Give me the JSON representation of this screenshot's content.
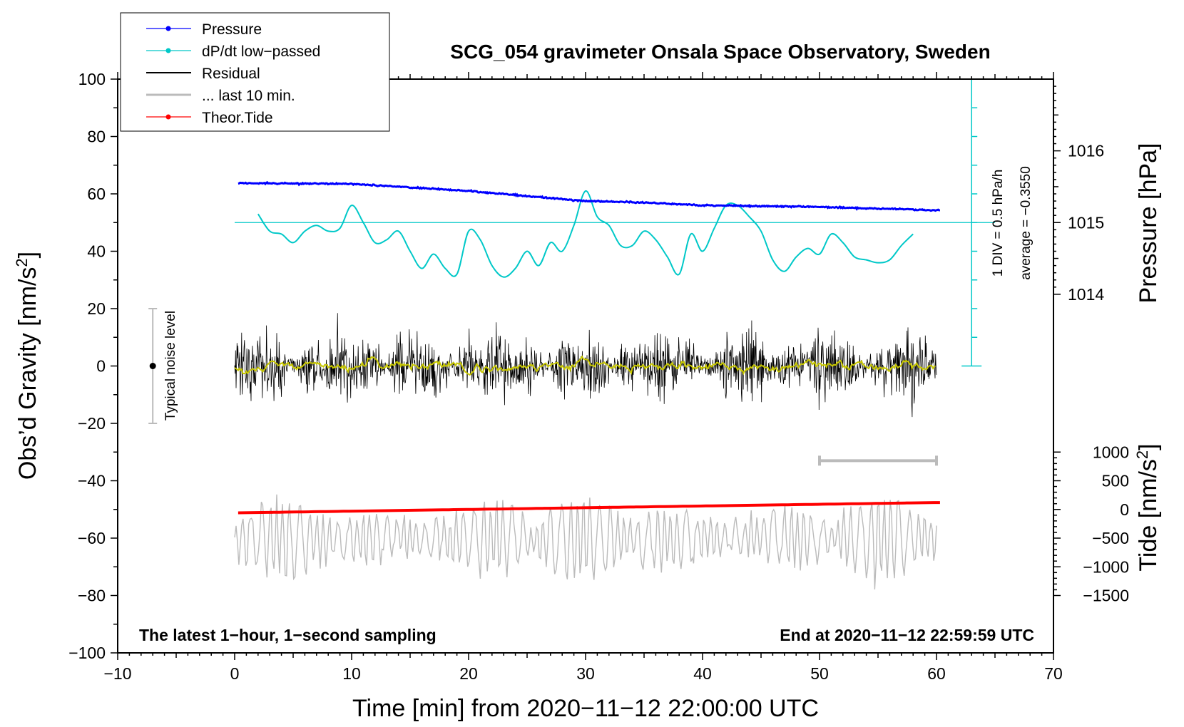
{
  "chart_data": {
    "type": "line",
    "title": "SCG_054 gravimeter Onsala Space Observatory, Sweden",
    "xlabel": "Time [min] from 2020−11−12 22:00:00 UTC",
    "ylabel": "Obs’d Gravity [nm/s",
    "ylabel_sup": "2",
    "ylabel_close": "]",
    "y2label_pressure": "Pressure [hPa]",
    "y2label_tide": "Tide [nm/s",
    "y2label_tide_sup": "2",
    "y2label_tide_close": "]",
    "xlim": [
      -10,
      70
    ],
    "ylim": [
      -100,
      100
    ],
    "x_ticks": [
      "−10",
      "0",
      "10",
      "20",
      "30",
      "40",
      "50",
      "60",
      "70"
    ],
    "x_tick_values": [
      -10,
      0,
      10,
      20,
      30,
      40,
      50,
      60,
      70
    ],
    "y_ticks": [
      "100",
      "80",
      "60",
      "40",
      "20",
      "0",
      "−20",
      "−40",
      "−60",
      "−80",
      "−100"
    ],
    "y_tick_values": [
      100,
      80,
      60,
      40,
      20,
      0,
      -20,
      -40,
      -60,
      -80,
      -100
    ],
    "pressure_axis": {
      "ticks": [
        "1016",
        "1015",
        "1014"
      ],
      "tick_values": [
        1016,
        1015,
        1014
      ],
      "ref_hpa": 1015,
      "ref_gravity": 50,
      "gravity_per_hpa": 25
    },
    "tide_axis": {
      "ticks": [
        "1000",
        "500",
        "0",
        "−500",
        "−1000",
        "−1500"
      ],
      "tick_values": [
        1000,
        500,
        0,
        -500,
        -1000,
        -1500
      ],
      "ref_tide": 0,
      "ref_gravity": -50,
      "gravity_per_nms2": 0.02
    },
    "legend": {
      "position": "top-left",
      "entries": [
        {
          "label": "Pressure",
          "color": "#0000ff",
          "marker": true
        },
        {
          "label": "dP/dt low−passed",
          "color": "#00c8c8",
          "marker": true
        },
        {
          "label": "Residual",
          "color": "#000000",
          "marker": false
        },
        {
          "label": "... last 10 min.",
          "color": "#bbbbbb",
          "marker": false
        },
        {
          "label": "Theor.Tide",
          "color": "#ff0000",
          "marker": true
        }
      ]
    },
    "series": [
      {
        "name": "Pressure",
        "color": "#0000ff",
        "unit": "hPa",
        "x": [
          0,
          10,
          20,
          30,
          35,
          40,
          50,
          60
        ],
        "values": [
          1015.55,
          1015.54,
          1015.44,
          1015.3,
          1015.28,
          1015.24,
          1015.22,
          1015.17
        ]
      },
      {
        "name": "dP/dt low−passed",
        "color": "#00c8c8",
        "unit": "gravity",
        "x": [
          2,
          3,
          4,
          5,
          6,
          7,
          8,
          9,
          10,
          11,
          12,
          13,
          14,
          15,
          16,
          17,
          18,
          19,
          20,
          21,
          22,
          23,
          24,
          25,
          26,
          27,
          28,
          29,
          30,
          31,
          32,
          33,
          34,
          35,
          36,
          37,
          38,
          39,
          40,
          41,
          42,
          43,
          44,
          45,
          46,
          47,
          48,
          49,
          50,
          51,
          52,
          53,
          54,
          55,
          56,
          57,
          58
        ],
        "values": [
          53,
          47,
          46,
          43,
          47,
          49,
          47,
          48,
          56,
          50,
          43,
          44,
          47,
          40,
          34,
          39,
          34,
          32,
          47,
          44,
          35,
          31,
          34,
          40,
          35,
          43,
          40,
          49,
          61,
          52,
          49,
          42,
          42,
          47,
          44,
          38,
          32,
          46,
          40,
          48,
          56,
          56,
          52,
          47,
          37,
          33,
          38,
          41,
          39,
          46,
          43,
          38,
          37,
          36,
          37,
          42,
          46
        ]
      },
      {
        "name": "Residual",
        "color": "#000000",
        "unit": "gravity",
        "x": [
          0,
          60
        ],
        "values": [
          0,
          0
        ],
        "note": "1-second sampling noise, amplitude about ±20"
      },
      {
        "name": "Residual smoothed",
        "color": "#c8c800",
        "unit": "gravity",
        "x": [
          0,
          60
        ],
        "values": [
          0,
          0
        ]
      },
      {
        "name": "... last 10 min.",
        "color": "#bbbbbb",
        "unit": "gravity",
        "x": [
          0,
          60
        ],
        "values": [
          -60,
          -60
        ],
        "note": "last 10 minutes of residual, stretched over 0–60, amplitude about ±25"
      },
      {
        "name": "Theor.Tide",
        "color": "#ff0000",
        "unit": "nm/s²",
        "x": [
          0,
          60
        ],
        "values": [
          -60,
          120
        ]
      }
    ],
    "last10_bracket": {
      "x": [
        50,
        60
      ],
      "y": -33
    },
    "dpdt_reference": {
      "value_gravity": 50,
      "scale_bar_x": 63,
      "scale_bar_range": [
        0,
        100
      ],
      "divisions": 10,
      "label_div": "1 DIV = 0.5 hPa/h",
      "label_avg": "average = −0.3550"
    },
    "noise_bar": {
      "x": -7,
      "range": [
        -20,
        20
      ],
      "label": "Typical noise level"
    },
    "note_left": "The latest 1−hour, 1−second sampling",
    "note_right": "End at 2020−11−12 22:59:59 UTC"
  }
}
